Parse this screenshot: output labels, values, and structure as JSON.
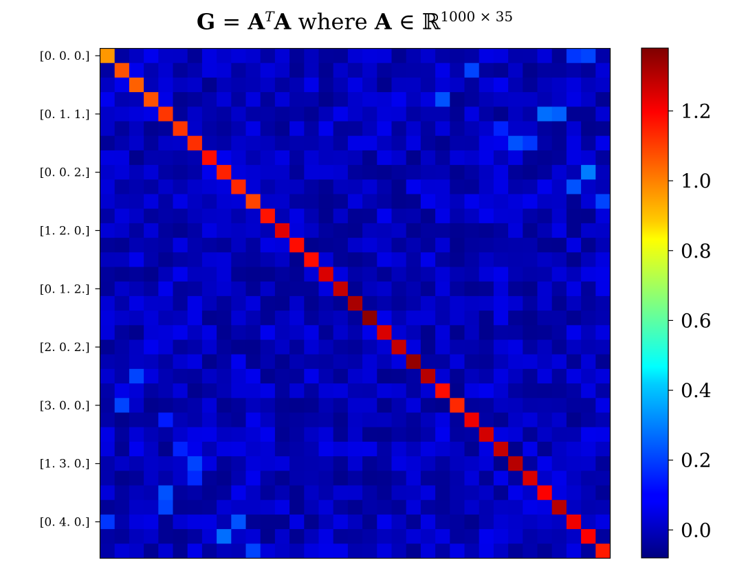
{
  "chart_data": {
    "type": "heatmap",
    "title_parts": {
      "lhs": "G",
      "eq": " = ",
      "mat": "A",
      "transpose": "T",
      "mat2": "A",
      "where": " where ",
      "mat3": "A",
      "in": " ∈ ",
      "field": "ℝ",
      "dims": "1000 × 35"
    },
    "size": 35,
    "y_tick_rows": [
      0,
      4,
      8,
      12,
      16,
      20,
      24,
      28,
      32
    ],
    "y_tick_labels": [
      "[0. 0. 0.]",
      "[0. 1. 1.]",
      "[0. 0. 2.]",
      "[1. 2. 0.]",
      "[0. 1. 2.]",
      "[2. 0. 2.]",
      "[3. 0. 0.]",
      "[1. 3. 0.]",
      "[0. 4. 0.]"
    ],
    "colormap": "jet",
    "vmin": -0.08,
    "vmax": 1.38,
    "colorbar_ticks": [
      0.0,
      0.2,
      0.4,
      0.6,
      0.8,
      1.0,
      1.2
    ],
    "colorbar_tick_labels": [
      "0.0",
      "0.2",
      "0.4",
      "0.6",
      "0.8",
      "1.0",
      "1.2"
    ],
    "diagonal": [
      0.98,
      1.08,
      1.06,
      1.08,
      1.12,
      1.12,
      1.13,
      1.18,
      1.15,
      1.14,
      1.1,
      1.17,
      1.24,
      1.18,
      1.18,
      1.25,
      1.28,
      1.32,
      1.36,
      1.25,
      1.28,
      1.35,
      1.3,
      1.18,
      1.14,
      1.22,
      1.26,
      1.28,
      1.3,
      1.25,
      1.2,
      1.3,
      1.22,
      1.2,
      1.16
    ],
    "strong_off_diagonal": [
      {
        "row": 0,
        "col": 33,
        "value": 0.2
      },
      {
        "row": 0,
        "col": 32,
        "value": 0.18
      },
      {
        "row": 3,
        "col": 23,
        "value": 0.22
      },
      {
        "row": 1,
        "col": 25,
        "value": 0.2
      },
      {
        "row": 4,
        "col": 31,
        "value": 0.24
      },
      {
        "row": 4,
        "col": 30,
        "value": 0.26
      },
      {
        "row": 5,
        "col": 27,
        "value": 0.15
      },
      {
        "row": 6,
        "col": 28,
        "value": 0.22
      },
      {
        "row": 6,
        "col": 29,
        "value": 0.18
      },
      {
        "row": 8,
        "col": 33,
        "value": 0.28
      },
      {
        "row": 9,
        "col": 32,
        "value": 0.22
      },
      {
        "row": 10,
        "col": 34,
        "value": 0.2
      },
      {
        "row": 22,
        "col": 2,
        "value": 0.2
      },
      {
        "row": 24,
        "col": 1,
        "value": 0.2
      },
      {
        "row": 25,
        "col": 4,
        "value": 0.14
      },
      {
        "row": 27,
        "col": 5,
        "value": 0.15
      },
      {
        "row": 28,
        "col": 6,
        "value": 0.2
      },
      {
        "row": 29,
        "col": 6,
        "value": 0.16
      },
      {
        "row": 30,
        "col": 4,
        "value": 0.22
      },
      {
        "row": 31,
        "col": 4,
        "value": 0.2
      },
      {
        "row": 32,
        "col": 9,
        "value": 0.22
      },
      {
        "row": 33,
        "col": 8,
        "value": 0.26
      },
      {
        "row": 32,
        "col": 0,
        "value": 0.18
      },
      {
        "row": 34,
        "col": 10,
        "value": 0.2
      }
    ],
    "off_diagonal_range": [
      -0.06,
      0.08
    ]
  }
}
